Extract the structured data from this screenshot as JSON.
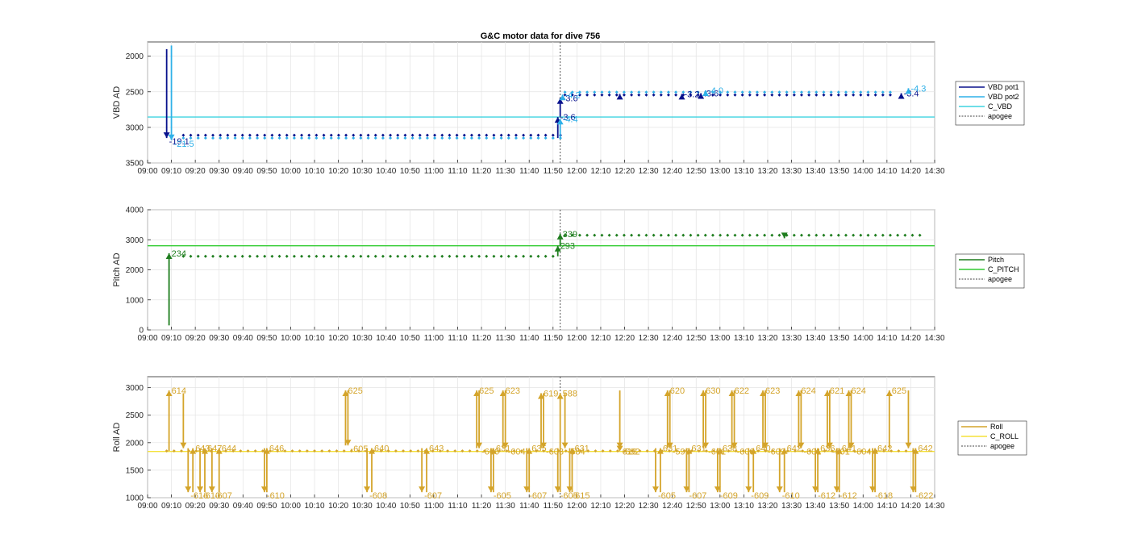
{
  "figure": {
    "title": "G&C motor data for dive 756"
  },
  "chart_data": [
    {
      "type": "line",
      "ylabel": "VBD AD",
      "ylim": [
        1800,
        3500
      ],
      "yreverse": true,
      "yticks": [
        "2000",
        "2500",
        "3000",
        "3500"
      ],
      "xlim": [
        "09:00",
        "14:30"
      ],
      "xticks": [
        "09:00",
        "09:10",
        "09:20",
        "09:30",
        "09:40",
        "09:50",
        "10:00",
        "10:10",
        "10:20",
        "10:30",
        "10:40",
        "10:50",
        "11:00",
        "11:10",
        "11:20",
        "11:30",
        "11:40",
        "11:50",
        "12:00",
        "12:10",
        "12:20",
        "12:30",
        "12:40",
        "12:50",
        "13:00",
        "13:10",
        "13:20",
        "13:30",
        "13:40",
        "13:50",
        "14:00",
        "14:10",
        "14:20",
        "14:30"
      ],
      "grid": true,
      "legend": {
        "placement": "outside-right",
        "entries": [
          "VBD pot1",
          "VBD pot2",
          "C_VBD",
          "apogee"
        ]
      },
      "reference": {
        "name": "C_VBD",
        "value": 2855,
        "color": "#3fd3e0"
      },
      "apogee": "11:53",
      "series": [
        {
          "name": "VBD pot1",
          "color": "#08118c",
          "levels": [
            [
              "09:15",
              3110
            ],
            [
              "11:54",
              3110
            ],
            [
              "11:55",
              2545
            ],
            [
              "14:14",
              2545
            ]
          ]
        },
        {
          "name": "VBD pot2",
          "color": "#2fb0e8",
          "levels": [
            [
              "09:15",
              3150
            ],
            [
              "11:54",
              3150
            ],
            [
              "11:55",
              2505
            ],
            [
              "14:14",
              2505
            ]
          ]
        }
      ],
      "moves": [
        {
          "time": "09:08",
          "from": 1900,
          "to": 3150,
          "color": "#08118c",
          "label": "-19.1"
        },
        {
          "time": "09:10",
          "from": 1850,
          "to": 3180,
          "color": "#2fb0e8",
          "label": "-21.5"
        },
        {
          "time": "11:52",
          "from": 3150,
          "to": 2855,
          "color": "#08118c",
          "label": "-3.6"
        },
        {
          "time": "11:53",
          "from": 2850,
          "to": 2590,
          "color": "#08118c",
          "label": "-3.6"
        },
        {
          "time": "11:53",
          "from": 3150,
          "to": 2880,
          "color": "#2fb0e8",
          "label": "-4.4"
        },
        {
          "time": "11:54",
          "from": 2600,
          "to": 2540,
          "color": "#2fb0e8",
          "label": "-4.2"
        },
        {
          "time": "12:18",
          "from": 2545,
          "to": 2530,
          "color": "#08118c",
          "label": ""
        },
        {
          "time": "12:44",
          "from": 2545,
          "to": 2530,
          "color": "#08118c",
          "label": "-3.2"
        },
        {
          "time": "12:52",
          "from": 2545,
          "to": 2520,
          "color": "#08118c",
          "label": "-3.6"
        },
        {
          "time": "12:54",
          "from": 2505,
          "to": 2480,
          "color": "#2fb0e8",
          "label": "-4.0"
        },
        {
          "time": "14:16",
          "from": 2545,
          "to": 2520,
          "color": "#08118c",
          "label": "-3.4"
        },
        {
          "time": "14:19",
          "from": 2505,
          "to": 2450,
          "color": "#2fb0e8",
          "label": "-4.3"
        }
      ]
    },
    {
      "type": "line",
      "ylabel": "Pitch AD",
      "ylim": [
        0,
        4000
      ],
      "yreverse": false,
      "yticks": [
        "0",
        "1000",
        "2000",
        "3000",
        "4000"
      ],
      "xlim": [
        "09:00",
        "14:30"
      ],
      "xticks": [
        "09:00",
        "09:10",
        "09:20",
        "09:30",
        "09:40",
        "09:50",
        "10:00",
        "10:10",
        "10:20",
        "10:30",
        "10:40",
        "10:50",
        "11:00",
        "11:10",
        "11:20",
        "11:30",
        "11:40",
        "11:50",
        "12:00",
        "12:10",
        "12:20",
        "12:30",
        "12:40",
        "12:50",
        "13:00",
        "13:10",
        "13:20",
        "13:30",
        "13:40",
        "13:50",
        "14:00",
        "14:10",
        "14:20",
        "14:30"
      ],
      "grid": true,
      "legend": {
        "placement": "outside-right",
        "entries": [
          "Pitch",
          "C_PITCH",
          "apogee"
        ]
      },
      "reference": {
        "name": "C_PITCH",
        "value": 2800,
        "color": "#33cc33"
      },
      "apogee": "11:53",
      "series": [
        {
          "name": "Pitch",
          "color": "#1e7d1e",
          "levels": [
            [
              "09:15",
              2450
            ],
            [
              "11:52",
              2450
            ],
            [
              "11:55",
              3150
            ],
            [
              "14:24",
              3150
            ]
          ]
        }
      ],
      "moves": [
        {
          "time": "09:09",
          "from": 150,
          "to": 2550,
          "color": "#1e7d1e",
          "label": "234"
        },
        {
          "time": "11:52",
          "from": 2450,
          "to": 2800,
          "color": "#1e7d1e",
          "label": "293"
        },
        {
          "time": "11:53",
          "from": 2800,
          "to": 3200,
          "color": "#1e7d1e",
          "label": "339"
        },
        {
          "time": "13:27",
          "from": 3150,
          "to": 3050,
          "color": "#1e7d1e",
          "label": ""
        }
      ]
    },
    {
      "type": "line",
      "ylabel": "Roll AD",
      "ylim": [
        1000,
        3200
      ],
      "yreverse": false,
      "yticks": [
        "1000",
        "1500",
        "2000",
        "2500",
        "3000"
      ],
      "xlim": [
        "09:00",
        "14:30"
      ],
      "xticks": [
        "09:00",
        "09:10",
        "09:20",
        "09:30",
        "09:40",
        "09:50",
        "10:00",
        "10:10",
        "10:20",
        "10:30",
        "10:40",
        "10:50",
        "11:00",
        "11:10",
        "11:20",
        "11:30",
        "11:40",
        "11:50",
        "12:00",
        "12:10",
        "12:20",
        "12:30",
        "12:40",
        "12:50",
        "13:00",
        "13:10",
        "13:20",
        "13:30",
        "13:40",
        "13:50",
        "14:00",
        "14:10",
        "14:20",
        "14:30"
      ],
      "grid": true,
      "legend": {
        "placement": "outside-right",
        "entries": [
          "Roll",
          "C_ROLL",
          "apogee"
        ]
      },
      "reference": {
        "name": "C_ROLL",
        "value": 1840,
        "color": "#f5e23a"
      },
      "apogee": "11:53",
      "series": [
        {
          "name": "Roll",
          "color": "#d4a42a",
          "levels": [
            [
              "09:08",
              1850
            ],
            [
              "14:22",
              1850
            ]
          ]
        }
      ],
      "moves": [
        {
          "time": "09:09",
          "from": 1850,
          "to": 2950,
          "color": "#d4a42a",
          "label": "614"
        },
        {
          "time": "09:15",
          "from": 2900,
          "to": 1900,
          "color": "#d4a42a",
          "label": ""
        },
        {
          "time": "09:17",
          "from": 1900,
          "to": 1100,
          "color": "#d4a42a",
          "label": "-616"
        },
        {
          "time": "09:19",
          "from": 1100,
          "to": 1900,
          "color": "#d4a42a",
          "label": "643"
        },
        {
          "time": "09:22",
          "from": 1900,
          "to": 1100,
          "color": "#d4a42a",
          "label": "-610"
        },
        {
          "time": "09:24",
          "from": 1100,
          "to": 1900,
          "color": "#d4a42a",
          "label": "647"
        },
        {
          "time": "09:27",
          "from": 1900,
          "to": 1100,
          "color": "#d4a42a",
          "label": "-607"
        },
        {
          "time": "09:30",
          "from": 1100,
          "to": 1900,
          "color": "#d4a42a",
          "label": "644"
        },
        {
          "time": "09:49",
          "from": 1900,
          "to": 1100,
          "color": "#d4a42a",
          "label": "-610"
        },
        {
          "time": "09:50",
          "from": 1100,
          "to": 1900,
          "color": "#d4a42a",
          "label": "646"
        },
        {
          "time": "10:23",
          "from": 1950,
          "to": 2950,
          "color": "#d4a42a",
          "label": "625"
        },
        {
          "time": "10:24",
          "from": 2950,
          "to": 1950,
          "color": "#d4a42a",
          "label": "-605"
        },
        {
          "time": "10:32",
          "from": 1900,
          "to": 1100,
          "color": "#d4a42a",
          "label": "-608"
        },
        {
          "time": "10:34",
          "from": 1100,
          "to": 1900,
          "color": "#d4a42a",
          "label": "640"
        },
        {
          "time": "10:55",
          "from": 1900,
          "to": 1100,
          "color": "#d4a42a",
          "label": "-607"
        },
        {
          "time": "10:57",
          "from": 1100,
          "to": 1900,
          "color": "#d4a42a",
          "label": "643"
        },
        {
          "time": "11:18",
          "from": 1900,
          "to": 2950,
          "color": "#d4a42a",
          "label": "625"
        },
        {
          "time": "11:19",
          "from": 2950,
          "to": 1900,
          "color": "#d4a42a",
          "label": "-606"
        },
        {
          "time": "11:24",
          "from": 1900,
          "to": 1100,
          "color": "#d4a42a",
          "label": "-605"
        },
        {
          "time": "11:25",
          "from": 1100,
          "to": 1900,
          "color": "#d4a42a",
          "label": "631"
        },
        {
          "time": "11:29",
          "from": 1900,
          "to": 2950,
          "color": "#d4a42a",
          "label": "623"
        },
        {
          "time": "11:30",
          "from": 2950,
          "to": 1900,
          "color": "#d4a42a",
          "label": "-604"
        },
        {
          "time": "11:39",
          "from": 1900,
          "to": 1100,
          "color": "#d4a42a",
          "label": "-607"
        },
        {
          "time": "11:40",
          "from": 1100,
          "to": 1900,
          "color": "#d4a42a",
          "label": "635"
        },
        {
          "time": "11:45",
          "from": 1900,
          "to": 2900,
          "color": "#d4a42a",
          "label": "619"
        },
        {
          "time": "11:46",
          "from": 2900,
          "to": 1900,
          "color": "#d4a42a",
          "label": "-603"
        },
        {
          "time": "11:52",
          "from": 1900,
          "to": 1100,
          "color": "#d4a42a",
          "label": "-605"
        },
        {
          "time": "11:53",
          "from": 1100,
          "to": 2900,
          "color": "#d4a42a",
          "label": "588"
        },
        {
          "time": "11:55",
          "from": 2900,
          "to": 1900,
          "color": "#d4a42a",
          "label": "-584"
        },
        {
          "time": "11:57",
          "from": 1900,
          "to": 1100,
          "color": "#d4a42a",
          "label": "-615"
        },
        {
          "time": "11:58",
          "from": 1100,
          "to": 1900,
          "color": "#d4a42a",
          "label": "631"
        },
        {
          "time": "12:18",
          "from": 2950,
          "to": 1900,
          "color": "#d4a42a",
          "label": "613"
        },
        {
          "time": "12:18",
          "from": 1900,
          "to": 1900,
          "color": "#d4a42a",
          "label": "-592"
        },
        {
          "time": "12:33",
          "from": 1900,
          "to": 1100,
          "color": "#d4a42a",
          "label": "-605"
        },
        {
          "time": "12:35",
          "from": 1100,
          "to": 1900,
          "color": "#d4a42a",
          "label": "631"
        },
        {
          "time": "12:38",
          "from": 1900,
          "to": 2950,
          "color": "#d4a42a",
          "label": "620"
        },
        {
          "time": "12:39",
          "from": 2950,
          "to": 1900,
          "color": "#d4a42a",
          "label": "-599"
        },
        {
          "time": "12:46",
          "from": 1900,
          "to": 1100,
          "color": "#d4a42a",
          "label": "-607"
        },
        {
          "time": "12:47",
          "from": 1100,
          "to": 1900,
          "color": "#d4a42a",
          "label": "631"
        },
        {
          "time": "12:53",
          "from": 1900,
          "to": 2950,
          "color": "#d4a42a",
          "label": "630"
        },
        {
          "time": "12:54",
          "from": 2950,
          "to": 1900,
          "color": "#d4a42a",
          "label": "-601"
        },
        {
          "time": "12:59",
          "from": 1900,
          "to": 1100,
          "color": "#d4a42a",
          "label": "-609"
        },
        {
          "time": "13:00",
          "from": 1100,
          "to": 1900,
          "color": "#d4a42a",
          "label": "638"
        },
        {
          "time": "13:05",
          "from": 1900,
          "to": 2950,
          "color": "#d4a42a",
          "label": "622"
        },
        {
          "time": "13:06",
          "from": 2950,
          "to": 1900,
          "color": "#d4a42a",
          "label": "-600"
        },
        {
          "time": "13:12",
          "from": 1900,
          "to": 1100,
          "color": "#d4a42a",
          "label": "-609"
        },
        {
          "time": "13:14",
          "from": 1100,
          "to": 1900,
          "color": "#d4a42a",
          "label": "640"
        },
        {
          "time": "13:18",
          "from": 1900,
          "to": 2950,
          "color": "#d4a42a",
          "label": "623"
        },
        {
          "time": "13:19",
          "from": 2950,
          "to": 1900,
          "color": "#d4a42a",
          "label": "-602"
        },
        {
          "time": "13:25",
          "from": 1900,
          "to": 1100,
          "color": "#d4a42a",
          "label": "-610"
        },
        {
          "time": "13:27",
          "from": 1100,
          "to": 1900,
          "color": "#d4a42a",
          "label": "642"
        },
        {
          "time": "13:33",
          "from": 1900,
          "to": 2950,
          "color": "#d4a42a",
          "label": "624"
        },
        {
          "time": "13:34",
          "from": 2950,
          "to": 1900,
          "color": "#d4a42a",
          "label": "-601"
        },
        {
          "time": "13:40",
          "from": 1900,
          "to": 1100,
          "color": "#d4a42a",
          "label": "-612"
        },
        {
          "time": "13:41",
          "from": 1100,
          "to": 1900,
          "color": "#d4a42a",
          "label": "636"
        },
        {
          "time": "13:45",
          "from": 1900,
          "to": 2950,
          "color": "#d4a42a",
          "label": "621"
        },
        {
          "time": "13:46",
          "from": 2950,
          "to": 1900,
          "color": "#d4a42a",
          "label": "-601"
        },
        {
          "time": "13:49",
          "from": 1900,
          "to": 1100,
          "color": "#d4a42a",
          "label": "-612"
        },
        {
          "time": "13:50",
          "from": 1100,
          "to": 1900,
          "color": "#d4a42a",
          "label": "641"
        },
        {
          "time": "13:54",
          "from": 1900,
          "to": 2950,
          "color": "#d4a42a",
          "label": "624"
        },
        {
          "time": "13:55",
          "from": 2950,
          "to": 1900,
          "color": "#d4a42a",
          "label": "-604"
        },
        {
          "time": "14:04",
          "from": 1900,
          "to": 1100,
          "color": "#d4a42a",
          "label": "-618"
        },
        {
          "time": "14:05",
          "from": 1100,
          "to": 1900,
          "color": "#d4a42a",
          "label": "642"
        },
        {
          "time": "14:11",
          "from": 1900,
          "to": 2950,
          "color": "#d4a42a",
          "label": "625"
        },
        {
          "time": "14:19",
          "from": 2950,
          "to": 1900,
          "color": "#d4a42a",
          "label": ""
        },
        {
          "time": "14:21",
          "from": 1900,
          "to": 1100,
          "color": "#d4a42a",
          "label": "-622"
        },
        {
          "time": "14:22",
          "from": 1100,
          "to": 1900,
          "color": "#d4a42a",
          "label": "642"
        }
      ]
    }
  ]
}
